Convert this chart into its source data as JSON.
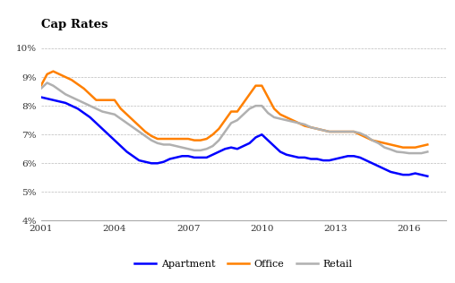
{
  "title": "Cap Rates",
  "xlim": [
    2001,
    2017.5
  ],
  "ylim": [
    0.04,
    0.105
  ],
  "yticks": [
    0.04,
    0.05,
    0.06,
    0.07,
    0.08,
    0.09,
    0.1
  ],
  "xticks": [
    2001,
    2004,
    2007,
    2010,
    2013,
    2016
  ],
  "apartment_color": "#0000FF",
  "office_color": "#FF8000",
  "retail_color": "#B0B0B0",
  "apartment": {
    "x": [
      2001.0,
      2001.25,
      2001.5,
      2001.75,
      2002.0,
      2002.25,
      2002.5,
      2002.75,
      2003.0,
      2003.25,
      2003.5,
      2003.75,
      2004.0,
      2004.25,
      2004.5,
      2004.75,
      2005.0,
      2005.25,
      2005.5,
      2005.75,
      2006.0,
      2006.25,
      2006.5,
      2006.75,
      2007.0,
      2007.25,
      2007.5,
      2007.75,
      2008.0,
      2008.25,
      2008.5,
      2008.75,
      2009.0,
      2009.25,
      2009.5,
      2009.75,
      2010.0,
      2010.25,
      2010.5,
      2010.75,
      2011.0,
      2011.25,
      2011.5,
      2011.75,
      2012.0,
      2012.25,
      2012.5,
      2012.75,
      2013.0,
      2013.25,
      2013.5,
      2013.75,
      2014.0,
      2014.25,
      2014.5,
      2014.75,
      2015.0,
      2015.25,
      2015.5,
      2015.75,
      2016.0,
      2016.25,
      2016.5,
      2016.75
    ],
    "y": [
      0.083,
      0.0825,
      0.082,
      0.0815,
      0.081,
      0.08,
      0.079,
      0.0775,
      0.076,
      0.074,
      0.072,
      0.07,
      0.068,
      0.066,
      0.064,
      0.0625,
      0.061,
      0.0605,
      0.06,
      0.06,
      0.0605,
      0.0615,
      0.062,
      0.0625,
      0.0625,
      0.062,
      0.062,
      0.062,
      0.063,
      0.064,
      0.065,
      0.0655,
      0.065,
      0.066,
      0.067,
      0.069,
      0.07,
      0.068,
      0.066,
      0.064,
      0.063,
      0.0625,
      0.062,
      0.062,
      0.0615,
      0.0615,
      0.061,
      0.061,
      0.0615,
      0.062,
      0.0625,
      0.0625,
      0.062,
      0.061,
      0.06,
      0.059,
      0.058,
      0.057,
      0.0565,
      0.056,
      0.056,
      0.0565,
      0.056,
      0.0555
    ]
  },
  "office": {
    "x": [
      2001.0,
      2001.25,
      2001.5,
      2001.75,
      2002.0,
      2002.25,
      2002.5,
      2002.75,
      2003.0,
      2003.25,
      2003.5,
      2003.75,
      2004.0,
      2004.25,
      2004.5,
      2004.75,
      2005.0,
      2005.25,
      2005.5,
      2005.75,
      2006.0,
      2006.25,
      2006.5,
      2006.75,
      2007.0,
      2007.25,
      2007.5,
      2007.75,
      2008.0,
      2008.25,
      2008.5,
      2008.75,
      2009.0,
      2009.25,
      2009.5,
      2009.75,
      2010.0,
      2010.25,
      2010.5,
      2010.75,
      2011.0,
      2011.25,
      2011.5,
      2011.75,
      2012.0,
      2012.25,
      2012.5,
      2012.75,
      2013.0,
      2013.25,
      2013.5,
      2013.75,
      2014.0,
      2014.25,
      2014.5,
      2014.75,
      2015.0,
      2015.25,
      2015.5,
      2015.75,
      2016.0,
      2016.25,
      2016.5,
      2016.75
    ],
    "y": [
      0.087,
      0.091,
      0.092,
      0.091,
      0.09,
      0.089,
      0.0875,
      0.086,
      0.084,
      0.082,
      0.082,
      0.082,
      0.082,
      0.079,
      0.077,
      0.075,
      0.073,
      0.071,
      0.0695,
      0.0685,
      0.0685,
      0.0685,
      0.0685,
      0.0685,
      0.0685,
      0.068,
      0.068,
      0.0685,
      0.07,
      0.072,
      0.075,
      0.078,
      0.078,
      0.081,
      0.084,
      0.087,
      0.087,
      0.083,
      0.079,
      0.077,
      0.076,
      0.075,
      0.074,
      0.073,
      0.0725,
      0.072,
      0.0715,
      0.071,
      0.071,
      0.071,
      0.071,
      0.071,
      0.07,
      0.069,
      0.068,
      0.0675,
      0.067,
      0.0665,
      0.066,
      0.0655,
      0.0655,
      0.0655,
      0.066,
      0.0665
    ]
  },
  "retail": {
    "x": [
      2001.0,
      2001.25,
      2001.5,
      2001.75,
      2002.0,
      2002.25,
      2002.5,
      2002.75,
      2003.0,
      2003.25,
      2003.5,
      2003.75,
      2004.0,
      2004.25,
      2004.5,
      2004.75,
      2005.0,
      2005.25,
      2005.5,
      2005.75,
      2006.0,
      2006.25,
      2006.5,
      2006.75,
      2007.0,
      2007.25,
      2007.5,
      2007.75,
      2008.0,
      2008.25,
      2008.5,
      2008.75,
      2009.0,
      2009.25,
      2009.5,
      2009.75,
      2010.0,
      2010.25,
      2010.5,
      2010.75,
      2011.0,
      2011.25,
      2011.5,
      2011.75,
      2012.0,
      2012.25,
      2012.5,
      2012.75,
      2013.0,
      2013.25,
      2013.5,
      2013.75,
      2014.0,
      2014.25,
      2014.5,
      2014.75,
      2015.0,
      2015.25,
      2015.5,
      2015.75,
      2016.0,
      2016.25,
      2016.5,
      2016.75
    ],
    "y": [
      0.086,
      0.088,
      0.087,
      0.0855,
      0.084,
      0.083,
      0.082,
      0.081,
      0.08,
      0.079,
      0.078,
      0.0775,
      0.077,
      0.0755,
      0.074,
      0.0725,
      0.071,
      0.0695,
      0.068,
      0.067,
      0.0665,
      0.0665,
      0.066,
      0.0655,
      0.065,
      0.0645,
      0.0645,
      0.065,
      0.066,
      0.068,
      0.071,
      0.074,
      0.075,
      0.077,
      0.079,
      0.08,
      0.08,
      0.0775,
      0.076,
      0.0755,
      0.075,
      0.0745,
      0.074,
      0.0735,
      0.0725,
      0.072,
      0.0715,
      0.071,
      0.071,
      0.071,
      0.071,
      0.071,
      0.0705,
      0.0695,
      0.068,
      0.067,
      0.0655,
      0.0648,
      0.064,
      0.0638,
      0.0635,
      0.0635,
      0.0635,
      0.064
    ]
  }
}
